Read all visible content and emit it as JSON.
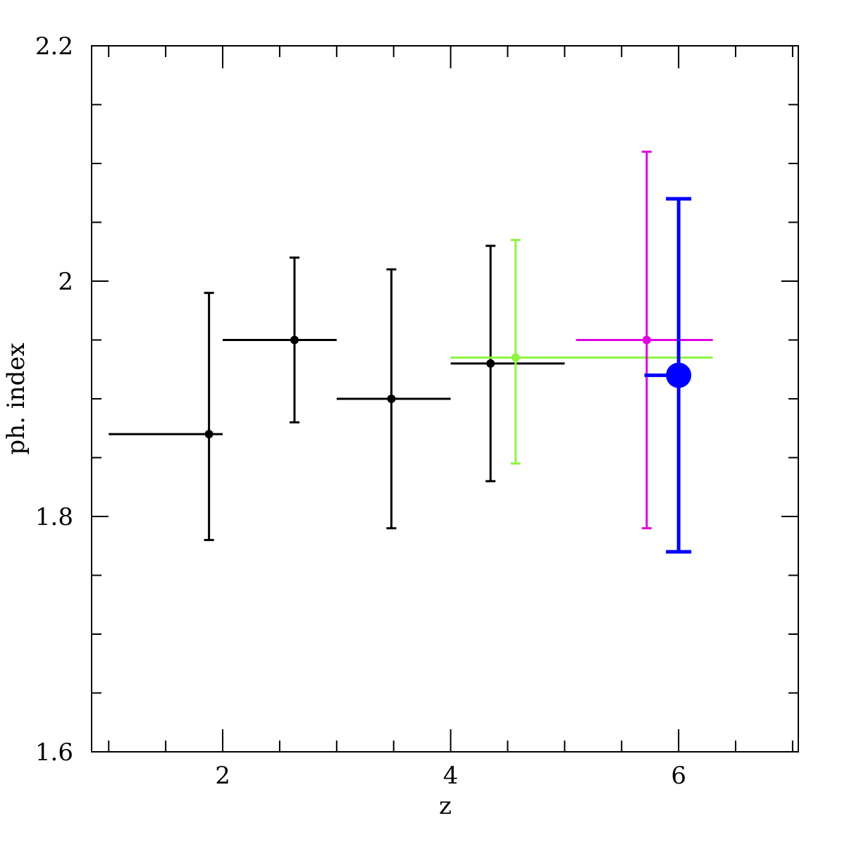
{
  "chart_data": {
    "type": "scatter",
    "xlabel": "z",
    "ylabel": "ph. index",
    "xlim": [
      0.85,
      7.05
    ],
    "ylim": [
      1.6,
      2.2
    ],
    "x_major_ticks": [
      2,
      4,
      6
    ],
    "x_tick_labels": [
      "2",
      "4",
      "6"
    ],
    "x_minor_step": 0.5,
    "y_major_ticks": [
      1.6,
      1.8,
      2.0,
      2.2
    ],
    "y_tick_labels": [
      "1.6",
      "1.8",
      "2",
      "2.2"
    ],
    "y_minor_step": 0.05,
    "grid": false,
    "series": [
      {
        "color": "#000000",
        "points": [
          {
            "x": 1.88,
            "y": 1.87,
            "x_low": 1.0,
            "x_high": 2.0,
            "y_low": 1.78,
            "y_high": 1.99
          },
          {
            "x": 2.63,
            "y": 1.95,
            "x_low": 2.0,
            "x_high": 3.0,
            "y_low": 1.88,
            "y_high": 2.02
          },
          {
            "x": 3.48,
            "y": 1.9,
            "x_low": 3.0,
            "x_high": 4.0,
            "y_low": 1.79,
            "y_high": 2.01
          },
          {
            "x": 4.35,
            "y": 1.93,
            "x_low": 4.0,
            "x_high": 5.0,
            "y_low": 1.83,
            "y_high": 2.03
          }
        ]
      },
      {
        "color": "#8ef542",
        "points": [
          {
            "x": 4.57,
            "y": 1.935,
            "x_low": 4.0,
            "x_high": 6.3,
            "y_low": 1.845,
            "y_high": 2.035
          }
        ]
      },
      {
        "color": "#e000e0",
        "points": [
          {
            "x": 5.72,
            "y": 1.95,
            "x_low": 5.1,
            "x_high": 6.3,
            "y_low": 1.79,
            "y_high": 2.11
          }
        ]
      },
      {
        "color": "#0000ff",
        "points": [
          {
            "x": 6.0,
            "y": 1.92,
            "x_low": 5.7,
            "x_high": 6.0,
            "y_low": 1.77,
            "y_high": 2.07
          }
        ]
      }
    ]
  }
}
